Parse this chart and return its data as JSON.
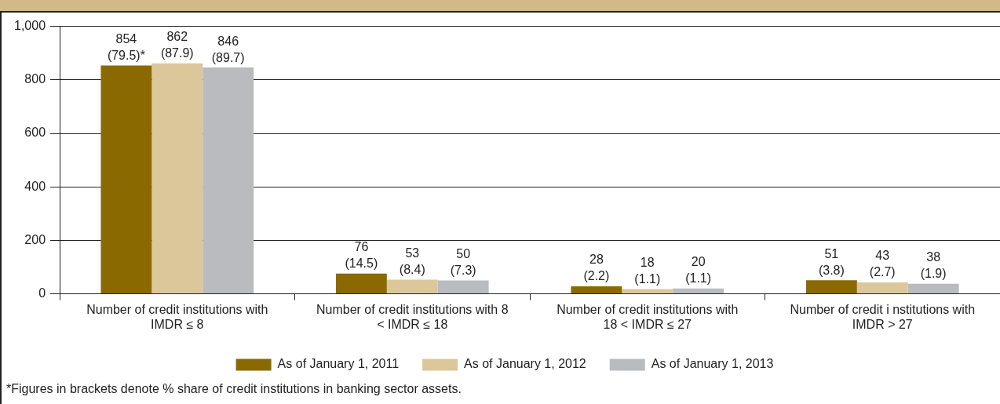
{
  "chart_data": {
    "type": "bar",
    "categories": [
      "Number of credit institutions with IMDR ≤ 8",
      "Number of credit institutions with 8 < IMDR ≤ 18",
      "Number of credit institutions with 18 < IMDR ≤ 27",
      "Number of credit i nstitutions with IMDR > 27"
    ],
    "series": [
      {
        "name": "As of January 1, 2011",
        "color": "#8a6a00",
        "values": [
          854,
          76,
          28,
          51
        ],
        "value_labels": [
          "854 (79.5)*",
          "76 (14.5)",
          "28 (2.2)",
          "51 (3.8)"
        ]
      },
      {
        "name": "As of January 1, 2012",
        "color": "#dcc79b",
        "values": [
          862,
          53,
          18,
          43
        ],
        "value_labels": [
          "862 (87.9)",
          "53 (8.4)",
          "18 (1.1)",
          "43 (2.7)"
        ]
      },
      {
        "name": "As of January 1, 2013",
        "color": "#babbbf",
        "values": [
          846,
          50,
          20,
          38
        ],
        "value_labels": [
          "846 (89.7)",
          "50 (7.3)",
          "20 (1.1)",
          "38 (1.9)"
        ]
      }
    ],
    "ylim": [
      0,
      1000
    ],
    "yticks": [
      0,
      200,
      400,
      600,
      {
        "value": 800,
        "label": "800"
      },
      {
        "value": 1000,
        "label": "1,000"
      }
    ],
    "grid": "y",
    "legend": "bottom",
    "annotations": [
      "*Figures in brackets denote % share of credit institutions in banking sector assets."
    ]
  }
}
